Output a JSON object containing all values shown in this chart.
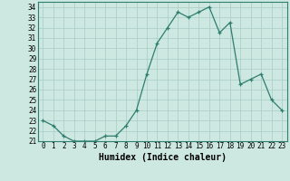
{
  "x": [
    0,
    1,
    2,
    3,
    4,
    5,
    6,
    7,
    8,
    9,
    10,
    11,
    12,
    13,
    14,
    15,
    16,
    17,
    18,
    19,
    20,
    21,
    22,
    23
  ],
  "y": [
    23,
    22.5,
    21.5,
    21,
    21,
    21,
    21.5,
    21.5,
    22.5,
    24,
    27.5,
    30.5,
    32,
    33.5,
    33,
    33.5,
    34,
    31.5,
    32.5,
    26.5,
    27,
    27.5,
    25,
    24
  ],
  "line_color": "#2e7d6e",
  "marker_color": "#2e7d6e",
  "bg_color": "#cce8e0",
  "grid_color": "#a8ccc6",
  "xlabel": "Humidex (Indice chaleur)",
  "xlim": [
    -0.5,
    23.5
  ],
  "ylim": [
    21,
    34.5
  ],
  "yticks": [
    21,
    22,
    23,
    24,
    25,
    26,
    27,
    28,
    29,
    30,
    31,
    32,
    33,
    34
  ],
  "xticks": [
    0,
    1,
    2,
    3,
    4,
    5,
    6,
    7,
    8,
    9,
    10,
    11,
    12,
    13,
    14,
    15,
    16,
    17,
    18,
    19,
    20,
    21,
    22,
    23
  ],
  "xtick_labels": [
    "0",
    "1",
    "2",
    "3",
    "4",
    "5",
    "6",
    "7",
    "8",
    "9",
    "10",
    "11",
    "12",
    "13",
    "14",
    "15",
    "16",
    "17",
    "18",
    "19",
    "20",
    "21",
    "22",
    "23"
  ],
  "tick_fontsize": 5.5,
  "xlabel_fontsize": 7
}
